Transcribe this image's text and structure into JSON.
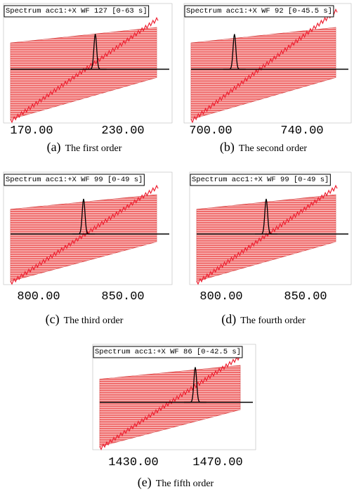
{
  "panels": [
    {
      "title": "Spectrum acc1:+X WF 127 [0-63 s]",
      "x_tick_labels": [
        "170.00",
        "230.00"
      ],
      "caption_label": "(a)",
      "caption": "The first order"
    },
    {
      "title": "Spectrum acc1:+X WF 92 [0-45.5 s]",
      "x_tick_labels": [
        "700.00",
        "740.00"
      ],
      "caption_label": "(b)",
      "caption": "The second order"
    },
    {
      "title": "Spectrum acc1:+X WF 99 [0-49 s]",
      "x_tick_labels": [
        "800.00",
        "850.00"
      ],
      "caption_label": "(c)",
      "caption": "The third order"
    },
    {
      "title": "Spectrum acc1:+X WF 99 [0-49 s]",
      "x_tick_labels": [
        "800.00",
        "850.00"
      ],
      "caption_label": "(d)",
      "caption": "The fourth order"
    },
    {
      "title": "Spectrum acc1:+X WF 86 [0-42.5 s]",
      "x_tick_labels": [
        "1430.00",
        "1470.00"
      ],
      "caption_label": "(e)",
      "caption": "The fifth order"
    }
  ]
}
